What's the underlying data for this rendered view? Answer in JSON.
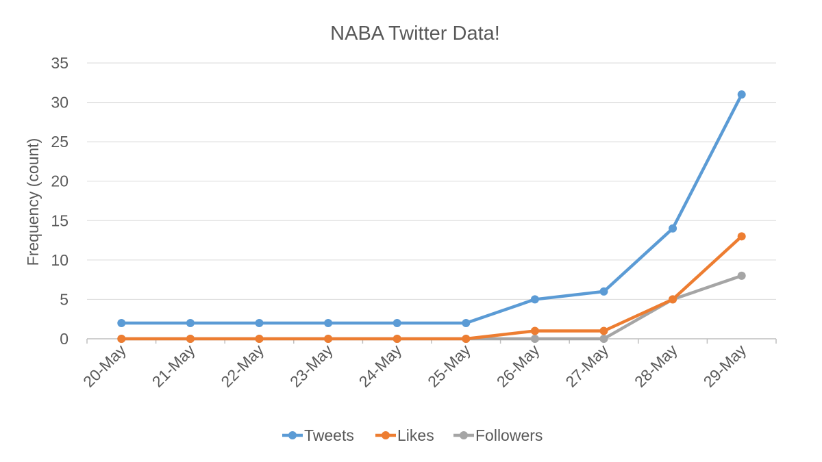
{
  "chart_data": {
    "type": "line",
    "title": "NABA Twitter Data!",
    "xlabel": "",
    "ylabel": "Frequency (count)",
    "ylim": [
      0,
      35
    ],
    "yticks": [
      0,
      5,
      10,
      15,
      20,
      25,
      30,
      35
    ],
    "categories": [
      "20-May",
      "21-May",
      "22-May",
      "23-May",
      "24-May",
      "25-May",
      "26-May",
      "27-May",
      "28-May",
      "29-May"
    ],
    "series": [
      {
        "name": "Tweets",
        "color": "#5b9bd5",
        "values": [
          2,
          2,
          2,
          2,
          2,
          2,
          5,
          6,
          14,
          31
        ]
      },
      {
        "name": "Likes",
        "color": "#ed7d31",
        "values": [
          0,
          0,
          0,
          0,
          0,
          0,
          1,
          1,
          5,
          13
        ]
      },
      {
        "name": "Followers",
        "color": "#a5a5a5",
        "values": [
          0,
          0,
          0,
          0,
          0,
          0,
          0,
          0,
          5,
          8
        ]
      }
    ],
    "grid": true,
    "legend_position": "bottom"
  }
}
